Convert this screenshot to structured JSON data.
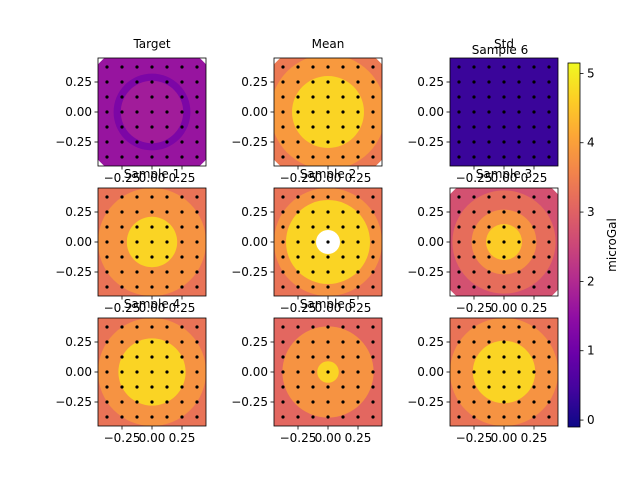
{
  "figure": {
    "colorbar": {
      "label": "microGal",
      "range": [
        -0.1,
        5.15
      ],
      "ticks": [
        0,
        1,
        2,
        3,
        4,
        5
      ],
      "tick_labels": [
        "0",
        "1",
        "2",
        "3",
        "4",
        "5"
      ],
      "colormap": "plasma"
    }
  },
  "chart_data": [
    {
      "type": "heatmap",
      "title": "Target",
      "xlim": [
        -0.45,
        0.45
      ],
      "ylim": [
        -0.45,
        0.45
      ],
      "xticks": [
        -0.25,
        0.0,
        0.25
      ],
      "yticks": [
        -0.25,
        0.0,
        0.25
      ],
      "xtick_labels": [
        "−0.25",
        "0.00",
        "0.25"
      ],
      "ytick_labels": [
        "−0.25",
        "0.00",
        "0.25"
      ],
      "show_xticks": true,
      "show_yticks": true,
      "levels": [
        {
          "r": 0.6,
          "value": 1.6
        },
        {
          "r": 0.32,
          "value": 1.2
        },
        {
          "r": 0.26,
          "value": 1.75
        }
      ]
    },
    {
      "type": "heatmap",
      "title": "Mean",
      "xlim": [
        -0.45,
        0.45
      ],
      "ylim": [
        -0.45,
        0.45
      ],
      "xticks": [
        -0.25,
        0.0,
        0.25
      ],
      "yticks": [
        -0.25,
        0.0,
        0.25
      ],
      "xtick_labels": [
        "−0.25",
        "0.00",
        "0.25"
      ],
      "ytick_labels": [
        "−0.25",
        "0.00",
        "0.25"
      ],
      "show_xticks": true,
      "show_yticks": true,
      "levels": [
        {
          "r": 0.6,
          "value": 3.4
        },
        {
          "r": 0.48,
          "value": 3.9
        },
        {
          "r": 0.3,
          "value": 4.7
        }
      ]
    },
    {
      "type": "heatmap",
      "title": "Std",
      "subtitle": "Sample 6",
      "xlim": [
        -0.45,
        0.45
      ],
      "ylim": [
        -0.45,
        0.45
      ],
      "xticks": [
        -0.25,
        0.0,
        0.25
      ],
      "yticks": [
        -0.25,
        0.0,
        0.25
      ],
      "xtick_labels": [
        "−0.25",
        "0.00",
        "0.25"
      ],
      "ytick_labels": [
        "−0.25",
        "0.00",
        "0.25"
      ],
      "show_xticks": true,
      "show_yticks": true,
      "levels": [
        {
          "r": 0.7,
          "value": 0.35
        }
      ]
    },
    {
      "type": "heatmap",
      "title": "Sample 1",
      "xlim": [
        -0.45,
        0.45
      ],
      "ylim": [
        -0.45,
        0.45
      ],
      "xticks": [
        -0.25,
        0.0,
        0.25
      ],
      "yticks": [
        -0.25,
        0.0,
        0.25
      ],
      "xtick_labels": [
        "−0.25",
        "0.00",
        "0.25"
      ],
      "ytick_labels": [
        "−0.25",
        "0.00",
        "0.25"
      ],
      "show_xticks": true,
      "show_yticks": true,
      "levels": [
        {
          "r": 0.7,
          "value": 3.3
        },
        {
          "r": 0.45,
          "value": 3.8
        },
        {
          "r": 0.21,
          "value": 4.7
        }
      ]
    },
    {
      "type": "heatmap",
      "title": "Sample 2",
      "xlim": [
        -0.45,
        0.45
      ],
      "ylim": [
        -0.45,
        0.45
      ],
      "xticks": [
        -0.25,
        0.0,
        0.25
      ],
      "yticks": [
        -0.25,
        0.0,
        0.25
      ],
      "xtick_labels": [
        "−0.25",
        "0.00",
        "0.25"
      ],
      "ytick_labels": [
        "−0.25",
        "0.00",
        "0.25"
      ],
      "show_xticks": true,
      "show_yticks": true,
      "levels": [
        {
          "r": 0.7,
          "value": 3.3
        },
        {
          "r": 0.45,
          "value": 3.8
        },
        {
          "r": 0.35,
          "value": 4.7
        },
        {
          "r": 0.1,
          "value": null
        }
      ]
    },
    {
      "type": "heatmap",
      "title": "Sample 3",
      "xlim": [
        -0.45,
        0.45
      ],
      "ylim": [
        -0.45,
        0.45
      ],
      "xticks": [
        -0.25,
        0.0,
        0.25
      ],
      "yticks": [
        -0.25,
        0.0,
        0.25
      ],
      "xtick_labels": [
        "−0.25",
        "0.00",
        "0.25"
      ],
      "ytick_labels": [
        "−0.25",
        "0.00",
        "0.25"
      ],
      "show_xticks": true,
      "show_yticks": true,
      "levels": [
        {
          "r": 0.6,
          "value": 2.7
        },
        {
          "r": 0.43,
          "value": 3.2
        },
        {
          "r": 0.27,
          "value": 3.8
        },
        {
          "r": 0.15,
          "value": 4.6
        }
      ]
    },
    {
      "type": "heatmap",
      "title": "Sample 4",
      "xlim": [
        -0.45,
        0.45
      ],
      "ylim": [
        -0.45,
        0.45
      ],
      "xticks": [
        -0.25,
        0.0,
        0.25
      ],
      "yticks": [
        -0.25,
        0.0,
        0.25
      ],
      "xtick_labels": [
        "−0.25",
        "0.00",
        "0.25"
      ],
      "ytick_labels": [
        "−0.25",
        "0.00",
        "0.25"
      ],
      "show_xticks": true,
      "show_yticks": true,
      "levels": [
        {
          "r": 0.7,
          "value": 3.3
        },
        {
          "r": 0.45,
          "value": 3.8
        },
        {
          "r": 0.28,
          "value": 4.7
        }
      ]
    },
    {
      "type": "heatmap",
      "title": "Sample 5",
      "xlim": [
        -0.45,
        0.45
      ],
      "ylim": [
        -0.45,
        0.45
      ],
      "xticks": [
        -0.25,
        0.0,
        0.25
      ],
      "yticks": [
        -0.25,
        0.0,
        0.25
      ],
      "xtick_labels": [
        "−0.25",
        "0.00",
        "0.25"
      ],
      "ytick_labels": [
        "−0.25",
        "0.00",
        "0.25"
      ],
      "show_xticks": true,
      "show_yticks": true,
      "levels": [
        {
          "r": 0.7,
          "value": 3.1
        },
        {
          "r": 0.38,
          "value": 3.8
        },
        {
          "r": 0.09,
          "value": 4.7
        }
      ]
    },
    {
      "type": "heatmap",
      "title": "",
      "xlim": [
        -0.45,
        0.45
      ],
      "ylim": [
        -0.45,
        0.45
      ],
      "xticks": [
        -0.25,
        0.0,
        0.25
      ],
      "yticks": [
        -0.25,
        0.0,
        0.25
      ],
      "xtick_labels": [
        "−0.25",
        "0.00",
        "0.25"
      ],
      "ytick_labels": [
        "−0.25",
        "0.00",
        "0.25"
      ],
      "show_xticks": true,
      "show_yticks": true,
      "levels": [
        {
          "r": 0.7,
          "value": 3.3
        },
        {
          "r": 0.45,
          "value": 3.8
        },
        {
          "r": 0.26,
          "value": 4.7
        }
      ]
    }
  ]
}
